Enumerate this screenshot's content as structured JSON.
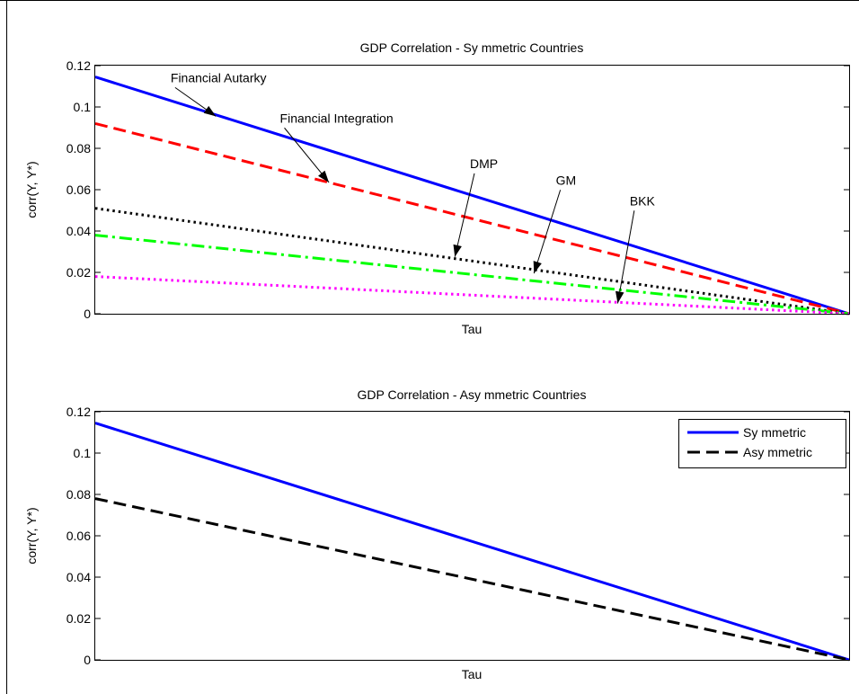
{
  "chart_data": [
    {
      "type": "line",
      "title": "GDP Correlation - Sy mmetric Countries",
      "xlabel": "Tau",
      "ylabel": "corr(Y, Y*)",
      "xlim": [
        0,
        1
      ],
      "ylim": [
        0,
        0.12
      ],
      "yticks": [
        "0",
        "0.02",
        "0.04",
        "0.06",
        "0.08",
        "0.1",
        "0.12"
      ],
      "grid": false,
      "series": [
        {
          "x": [
            0,
            1
          ],
          "values": [
            0.1145,
            0
          ],
          "color": "#0000ff",
          "style": "solid"
        },
        {
          "x": [
            0,
            1
          ],
          "values": [
            0.092,
            0
          ],
          "color": "#ff0000",
          "style": "dashed"
        },
        {
          "x": [
            0,
            1
          ],
          "values": [
            0.051,
            0
          ],
          "color": "#000000",
          "style": "dotted"
        },
        {
          "x": [
            0,
            1
          ],
          "values": [
            0.038,
            0
          ],
          "color": "#00ff00",
          "style": "dashdot"
        },
        {
          "x": [
            0,
            1
          ],
          "values": [
            0.018,
            0
          ],
          "color": "#ff00ff",
          "style": "dotted"
        }
      ],
      "annotations": [
        {
          "text": "Financial Autarky",
          "x": 0.1,
          "y": 0.112,
          "arrow_x": 0.16,
          "arrow_y": 0.0955
        },
        {
          "text": "Financial Integration",
          "x": 0.245,
          "y": 0.0925,
          "arrow_x": 0.31,
          "arrow_y": 0.0635
        },
        {
          "text": "DMP",
          "x": 0.497,
          "y": 0.0705,
          "arrow_x": 0.477,
          "arrow_y": 0.0275
        },
        {
          "text": "GM",
          "x": 0.611,
          "y": 0.0625,
          "arrow_x": 0.582,
          "arrow_y": 0.0195
        },
        {
          "text": "BKK",
          "x": 0.709,
          "y": 0.0525,
          "arrow_x": 0.693,
          "arrow_y": 0.005
        }
      ]
    },
    {
      "type": "line",
      "title": "GDP Correlation - Asy mmetric Countries",
      "xlabel": "Tau",
      "ylabel": "corr(Y, Y*)",
      "xlim": [
        0,
        1
      ],
      "ylim": [
        0,
        0.12
      ],
      "yticks": [
        "0",
        "0.02",
        "0.04",
        "0.06",
        "0.08",
        "0.1",
        "0.12"
      ],
      "grid": false,
      "legend": "top-right",
      "series": [
        {
          "name": "Sy mmetric",
          "x": [
            0,
            1
          ],
          "values": [
            0.1145,
            0
          ],
          "color": "#0000ff",
          "style": "solid"
        },
        {
          "name": "Asy mmetric",
          "x": [
            0,
            1
          ],
          "values": [
            0.078,
            0
          ],
          "color": "#000000",
          "style": "dashed"
        }
      ],
      "annotations": []
    }
  ]
}
